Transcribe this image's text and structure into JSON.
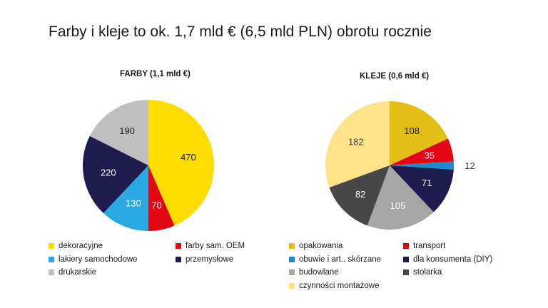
{
  "title": "Farby i kleje to ok. 1,7 mld € (6,5 mld PLN) obrotu rocznie",
  "chart_data": [
    {
      "type": "pie",
      "title": "FARBY (1,1 mld €)",
      "slices": [
        {
          "label": "dekoracyjne",
          "value": 470,
          "color": "#FFDD00",
          "label_color": "#1a1a1a"
        },
        {
          "label": "farby sam. OEM",
          "value": 70,
          "color": "#E30613",
          "label_color": "#ffffff"
        },
        {
          "label": "lakiery samochodowe",
          "value": 130,
          "color": "#29A9E1",
          "label_color": "#ffffff"
        },
        {
          "label": "przemysłowe",
          "value": 220,
          "color": "#1E1B4F",
          "label_color": "#ffffff"
        },
        {
          "label": "drukarskie",
          "value": 190,
          "color": "#BFBFBF",
          "label_color": "#1a1a1a"
        }
      ],
      "legend_position": "bottom"
    },
    {
      "type": "pie",
      "title": "KLEJE (0,6 mld €)",
      "slices": [
        {
          "label": "opakowania",
          "value": 108,
          "color": "#E3BE16",
          "label_color": "#1a1a1a"
        },
        {
          "label": "transport",
          "value": 35,
          "color": "#E30613",
          "label_color": "#ffffff"
        },
        {
          "label": "obuwie i art.. skórzane",
          "value": 12,
          "color": "#1C8BC9",
          "label_color": "#404040"
        },
        {
          "label": "dla konsumenta (DIY)",
          "value": 71,
          "color": "#1E1B4F",
          "label_color": "#ffffff"
        },
        {
          "label": "budowlane",
          "value": 105,
          "color": "#A6A6A6",
          "label_color": "#ffffff"
        },
        {
          "label": "stolarka",
          "value": 82,
          "color": "#474747",
          "label_color": "#ffffff"
        },
        {
          "label": "czynności montażowe",
          "value": 182,
          "color": "#FFE38A",
          "label_color": "#404040"
        }
      ],
      "legend_position": "bottom"
    }
  ]
}
